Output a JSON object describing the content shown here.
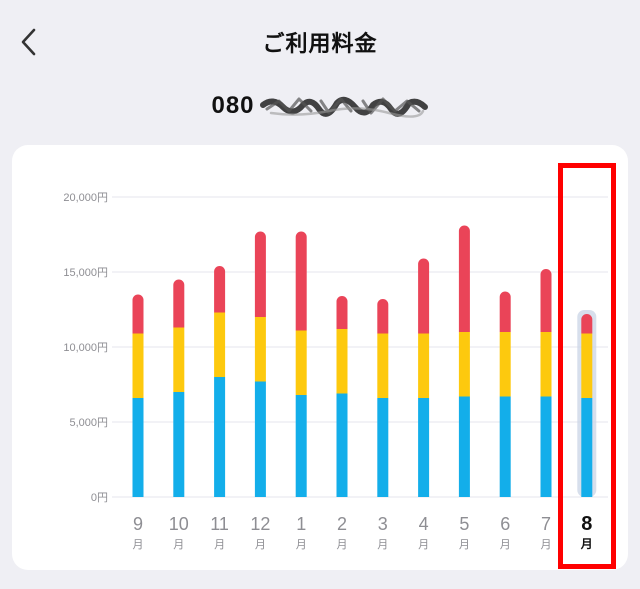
{
  "header": {
    "title": "ご利用料金",
    "back_icon": "chevron-left-icon"
  },
  "phone": {
    "prefix": "080",
    "masked_icon": "redacted-scribble"
  },
  "colors": {
    "background": "#efeff4",
    "card": "#ffffff",
    "segment_bottom": "#13aeea",
    "segment_middle": "#fdc90e",
    "segment_top": "#ea4458",
    "grid": "#e6e6ec",
    "tick_label": "#8e8e93",
    "selected_label": "#111111",
    "selection_frame": "#ff0000"
  },
  "chart_data": {
    "type": "bar",
    "stacked": true,
    "categories": [
      "9",
      "10",
      "11",
      "12",
      "1",
      "2",
      "3",
      "4",
      "5",
      "6",
      "7",
      "8"
    ],
    "month_unit": "月",
    "selected_index": 11,
    "series": [
      {
        "values": [
          6600,
          7000,
          8000,
          7700,
          6800,
          6900,
          6600,
          6600,
          6700,
          6700,
          6700,
          6600
        ]
      },
      {
        "values": [
          4300,
          4300,
          4300,
          4300,
          4300,
          4300,
          4300,
          4300,
          4300,
          4300,
          4300,
          4300
        ]
      },
      {
        "values": [
          2600,
          3200,
          3100,
          5700,
          6600,
          2200,
          2300,
          5000,
          7100,
          2700,
          4200,
          1300
        ]
      }
    ],
    "y_ticks": [
      "0円",
      "5,000円",
      "10,000円",
      "15,000円",
      "20,000円"
    ],
    "y_tick_values": [
      0,
      5000,
      10000,
      15000,
      20000
    ],
    "ylim": [
      0,
      20000
    ],
    "grid": true
  }
}
